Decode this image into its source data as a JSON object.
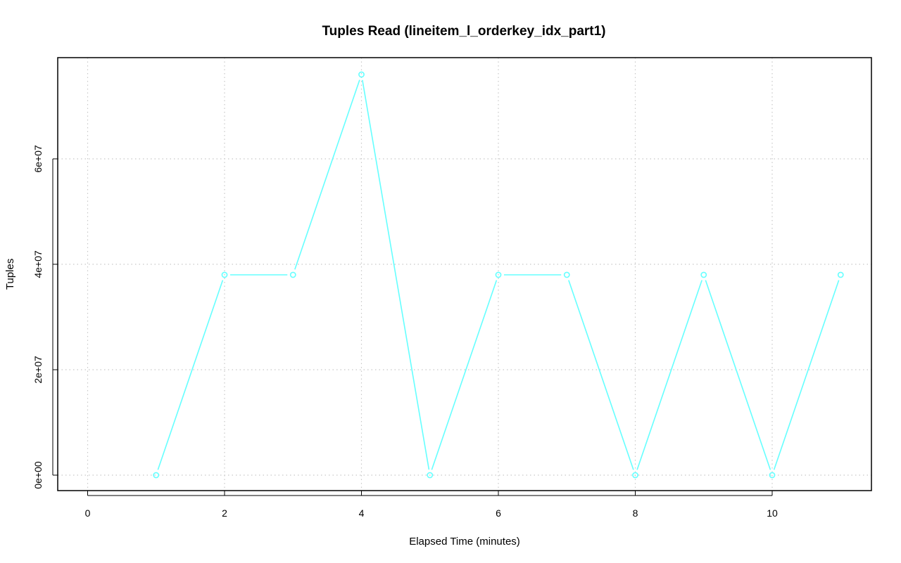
{
  "chart_data": {
    "type": "line",
    "title": "Tuples Read (lineitem_l_orderkey_idx_part1)",
    "xlabel": "Elapsed Time (minutes)",
    "ylabel": "Tuples",
    "xlim": [
      0,
      11
    ],
    "ylim": [
      0,
      76000000
    ],
    "x_ticks": [
      0,
      2,
      4,
      6,
      8,
      10
    ],
    "x_tick_labels": [
      "0",
      "2",
      "4",
      "6",
      "8",
      "10"
    ],
    "y_ticks": [
      0,
      20000000,
      40000000,
      60000000
    ],
    "y_tick_labels": [
      "0e+00",
      "2e+07",
      "4e+07",
      "6e+07"
    ],
    "grid": true,
    "series": [
      {
        "color": "#66ffff",
        "x": [
          1,
          2,
          3,
          4,
          5,
          6,
          7,
          8,
          9,
          10,
          11
        ],
        "values": [
          0,
          38000000,
          38000000,
          76000000,
          0,
          38000000,
          38000000,
          0,
          38000000,
          0,
          38000000
        ]
      }
    ]
  }
}
